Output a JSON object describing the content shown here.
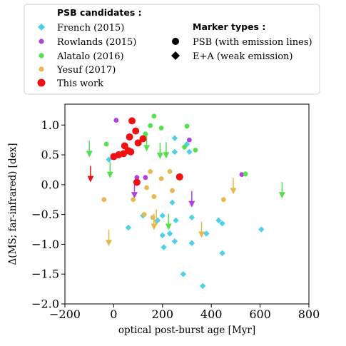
{
  "chart_data": {
    "type": "scatter",
    "xlabel": "optical post-burst age [Myr]",
    "ylabel": "Δ(MS; far-infrared) [dex]",
    "xlim": [
      -200,
      800
    ],
    "ylim": [
      -2.0,
      1.35
    ],
    "xticks": [
      "−200",
      "0",
      "200",
      "400",
      "600",
      "800"
    ],
    "xtick_values": [
      -200,
      0,
      200,
      400,
      600,
      800
    ],
    "yticks": [
      "1.0",
      "0.5",
      "0.0",
      "−0.5",
      "−1.0",
      "−1.5",
      "−2.0"
    ],
    "ytick_values": [
      1.0,
      0.5,
      0.0,
      -0.5,
      -1.0,
      -1.5,
      -2.0
    ],
    "legend": {
      "placement": "top",
      "group_title": "PSB candidates :",
      "marker_title": "Marker types :",
      "entries": [
        {
          "label": "French (2015)",
          "marker": "diamond",
          "color": "#4dd0e8"
        },
        {
          "label": "Rowlands (2015)",
          "marker": "circle",
          "color": "#b040e0"
        },
        {
          "label": "Alatalo (2016)",
          "marker": "circle",
          "color": "#55e050"
        },
        {
          "label": "Yesuf (2017)",
          "marker": "circle",
          "color": "#e8b850"
        },
        {
          "label": "This work",
          "marker": "circle",
          "color": "#ee1111"
        }
      ],
      "marker_entries": [
        {
          "label": "PSB (with emission lines)",
          "marker": "circle"
        },
        {
          "label": "E+A (weak emission)",
          "marker": "diamond"
        }
      ]
    },
    "series": [
      {
        "name": "French (2015)",
        "color": "#4dd0e8",
        "points": [
          {
            "x": 250,
            "y": 0.78,
            "m": "diamond"
          },
          {
            "x": 250,
            "y": 0.55,
            "m": "diamond"
          },
          {
            "x": 300,
            "y": 0.68,
            "m": "diamond"
          },
          {
            "x": 310,
            "y": 0.55,
            "m": "diamond"
          },
          {
            "x": -20,
            "y": 0.42,
            "m": "diamond"
          },
          {
            "x": 200,
            "y": -0.52,
            "m": "diamond"
          },
          {
            "x": 240,
            "y": -0.3,
            "m": "diamond"
          },
          {
            "x": 120,
            "y": -0.52,
            "m": "diamond"
          },
          {
            "x": 180,
            "y": -0.6,
            "m": "diamond"
          },
          {
            "x": 200,
            "y": -0.85,
            "m": "diamond"
          },
          {
            "x": 230,
            "y": -0.82,
            "m": "diamond"
          },
          {
            "x": 250,
            "y": -0.95,
            "m": "diamond"
          },
          {
            "x": 205,
            "y": -1.05,
            "m": "diamond"
          },
          {
            "x": 255,
            "y": -0.6,
            "m": "diamond"
          },
          {
            "x": 320,
            "y": -0.55,
            "m": "diamond"
          },
          {
            "x": 320,
            "y": -0.98,
            "m": "diamond"
          },
          {
            "x": 380,
            "y": -0.82,
            "m": "diamond"
          },
          {
            "x": 430,
            "y": -0.6,
            "m": "diamond"
          },
          {
            "x": 445,
            "y": -0.65,
            "m": "diamond"
          },
          {
            "x": 445,
            "y": -1.15,
            "m": "diamond"
          },
          {
            "x": 605,
            "y": -0.75,
            "m": "diamond"
          },
          {
            "x": 285,
            "y": -1.5,
            "m": "diamond"
          },
          {
            "x": 365,
            "y": -1.7,
            "m": "diamond"
          },
          {
            "x": 60,
            "y": -0.72,
            "m": "diamond"
          }
        ]
      },
      {
        "name": "Rowlands (2015)",
        "color": "#b040e0",
        "points": [
          {
            "x": 10,
            "y": 1.08,
            "m": "circle"
          },
          {
            "x": 525,
            "y": 0.17,
            "m": "circle"
          },
          {
            "x": 95,
            "y": 0.12,
            "m": "circle"
          },
          {
            "x": 130,
            "y": 0.12,
            "m": "circle"
          },
          {
            "x": 310,
            "y": 0.75,
            "m": "circle"
          }
        ]
      },
      {
        "name": "Alatalo (2016)",
        "color": "#55e050",
        "points": [
          {
            "x": 165,
            "y": 1.15,
            "m": "circle"
          },
          {
            "x": 150,
            "y": 0.99,
            "m": "circle"
          },
          {
            "x": 195,
            "y": 0.95,
            "m": "circle"
          },
          {
            "x": 300,
            "y": 0.98,
            "m": "circle"
          },
          {
            "x": 130,
            "y": 0.85,
            "m": "circle"
          },
          {
            "x": 290,
            "y": 0.63,
            "m": "circle"
          },
          {
            "x": 335,
            "y": 0.58,
            "m": "circle"
          },
          {
            "x": 540,
            "y": 0.18,
            "m": "circle"
          },
          {
            "x": -30,
            "y": 0.68,
            "m": "circle"
          }
        ]
      },
      {
        "name": "Yesuf (2017)",
        "color": "#e8b850",
        "points": [
          {
            "x": 150,
            "y": 0.22,
            "m": "circle"
          },
          {
            "x": 135,
            "y": -0.05,
            "m": "circle"
          },
          {
            "x": 195,
            "y": 0.1,
            "m": "circle"
          },
          {
            "x": 230,
            "y": 0.22,
            "m": "circle"
          },
          {
            "x": 165,
            "y": -0.2,
            "m": "circle"
          },
          {
            "x": 80,
            "y": -0.25,
            "m": "circle"
          },
          {
            "x": -40,
            "y": -0.25,
            "m": "circle"
          },
          {
            "x": 125,
            "y": -0.5,
            "m": "circle"
          },
          {
            "x": 240,
            "y": -0.1,
            "m": "circle"
          },
          {
            "x": 450,
            "y": -0.25,
            "m": "circle"
          },
          {
            "x": 160,
            "y": -0.55,
            "m": "circle"
          }
        ]
      },
      {
        "name": "This work",
        "color": "#ee1111",
        "points": [
          {
            "x": 75,
            "y": 1.07,
            "m": "circle"
          },
          {
            "x": 90,
            "y": 0.9,
            "m": "circle"
          },
          {
            "x": 65,
            "y": 0.8,
            "m": "circle"
          },
          {
            "x": 120,
            "y": 0.77,
            "m": "circle"
          },
          {
            "x": 100,
            "y": 0.7,
            "m": "circle"
          },
          {
            "x": 45,
            "y": 0.65,
            "m": "circle"
          },
          {
            "x": 60,
            "y": 0.57,
            "m": "circle"
          },
          {
            "x": 70,
            "y": 0.55,
            "m": "circle"
          },
          {
            "x": 40,
            "y": 0.52,
            "m": "circle"
          },
          {
            "x": 20,
            "y": 0.5,
            "m": "circle"
          },
          {
            "x": 0,
            "y": 0.47,
            "m": "circle"
          },
          {
            "x": 95,
            "y": 0.04,
            "m": "circle"
          },
          {
            "x": 270,
            "y": 0.13,
            "m": "circle"
          }
        ]
      }
    ],
    "upper_limits": [
      {
        "x": -95,
        "y": 0.05,
        "color": "#ee1111"
      },
      {
        "x": -100,
        "y": 0.47,
        "color": "#55e050"
      },
      {
        "x": -15,
        "y": 0.12,
        "color": "#55e050"
      },
      {
        "x": 135,
        "y": 0.57,
        "color": "#55e050"
      },
      {
        "x": 190,
        "y": 0.44,
        "color": "#55e050"
      },
      {
        "x": 215,
        "y": 0.45,
        "color": "#55e050"
      },
      {
        "x": 690,
        "y": -0.22,
        "color": "#55e050"
      },
      {
        "x": 225,
        "y": -0.75,
        "color": "#55e050"
      },
      {
        "x": 320,
        "y": -0.37,
        "color": "#b040e0"
      },
      {
        "x": 85,
        "y": -0.22,
        "color": "#b040e0"
      },
      {
        "x": -20,
        "y": -1.02,
        "color": "#e8b850"
      },
      {
        "x": 165,
        "y": -0.75,
        "color": "#e8b850"
      },
      {
        "x": 175,
        "y": -0.68,
        "color": "#e8b850"
      },
      {
        "x": 360,
        "y": -0.88,
        "color": "#e8b850"
      },
      {
        "x": 490,
        "y": -0.15,
        "color": "#e8b850"
      }
    ]
  }
}
